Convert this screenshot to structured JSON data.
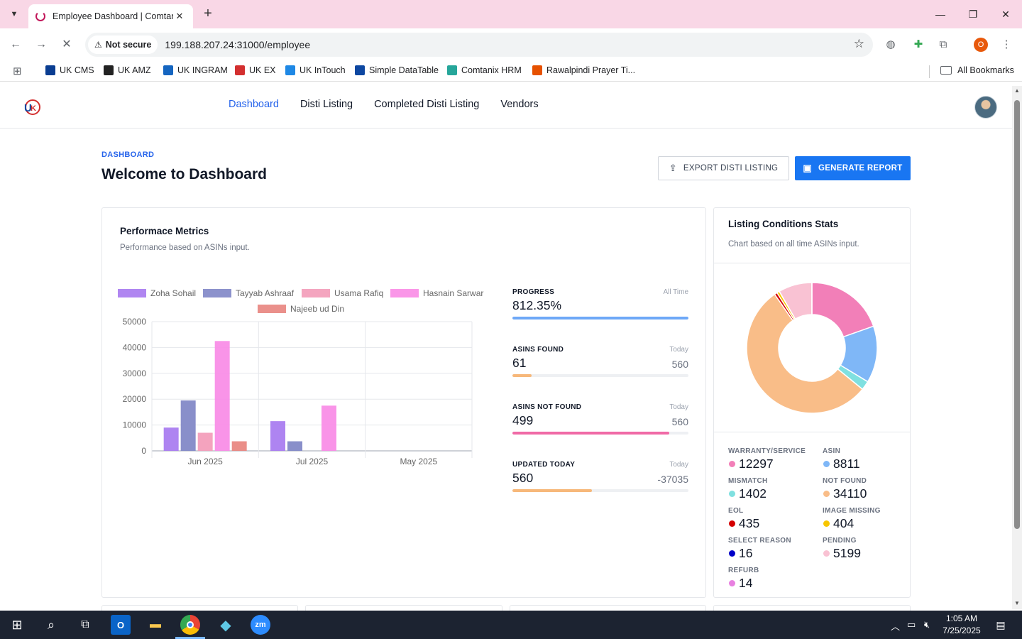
{
  "browser": {
    "tab_title": "Employee Dashboard | Comtan",
    "not_secure_label": "Not secure",
    "url": "199.188.207.24:31000/employee",
    "profile_initial": "O",
    "bookmarks": [
      {
        "label": "UK CMS",
        "color": "#0a3d91"
      },
      {
        "label": "UK AMZ",
        "color": "#222222"
      },
      {
        "label": "UK INGRAM",
        "color": "#1565c0"
      },
      {
        "label": "UK EX",
        "color": "#d32f2f"
      },
      {
        "label": "UK InTouch",
        "color": "#1e88e5"
      },
      {
        "label": "Simple DataTable",
        "color": "#0d47a1"
      },
      {
        "label": "Comtanix HRM",
        "color": "#26a69a"
      },
      {
        "label": "Rawalpindi Prayer Ti...",
        "color": "#e65100"
      }
    ],
    "all_bookmarks_label": "All Bookmarks"
  },
  "nav": {
    "items": [
      "Dashboard",
      "Disti Listing",
      "Completed Disti Listing",
      "Vendors"
    ],
    "active": "Dashboard"
  },
  "page": {
    "eyebrow": "DASHBOARD",
    "title": "Welcome to Dashboard",
    "export_button": "EXPORT DISTI LISTING",
    "generate_button": "GENERATE REPORT"
  },
  "performance": {
    "title": "Performace Metrics",
    "subtitle": "Performance based on ASINs input.",
    "metrics": [
      {
        "label": "PROGRESS",
        "period": "All Time",
        "value": "812.35%",
        "total": "",
        "fill": 1.0,
        "color": "#6ea8f7"
      },
      {
        "label": "ASINS FOUND",
        "period": "Today",
        "value": "61",
        "total": "560",
        "fill": 0.109,
        "color": "#f7b87a"
      },
      {
        "label": "ASINS NOT FOUND",
        "period": "Today",
        "value": "499",
        "total": "560",
        "fill": 0.891,
        "color": "#f06aa6"
      },
      {
        "label": "UPDATED TODAY",
        "period": "Today",
        "value": "560",
        "total": "-37035",
        "fill": 0.45,
        "color": "#f7b87a"
      }
    ]
  },
  "chart_data": {
    "type": "bar",
    "categories": [
      "Jun 2025",
      "Jul 2025",
      "May 2025"
    ],
    "series": [
      {
        "name": "Zoha Sohail",
        "color": "#a779f0",
        "values": [
          9000,
          11500,
          0
        ]
      },
      {
        "name": "Tayyab Ashraaf",
        "color": "#7f86c6",
        "values": [
          19500,
          3700,
          0
        ]
      },
      {
        "name": "Usama Rafiq",
        "color": "#f39bb8",
        "values": [
          7000,
          0,
          0
        ]
      },
      {
        "name": "Hasnain Sarwar",
        "color": "#f98be6",
        "values": [
          42500,
          17500,
          0
        ]
      },
      {
        "name": "Najeeb ud Din",
        "color": "#e8847e",
        "values": [
          3700,
          0,
          0
        ]
      }
    ],
    "yticks": [
      0,
      10000,
      20000,
      30000,
      40000,
      50000
    ],
    "ylim": [
      0,
      50000
    ],
    "grid": true,
    "legend": "top"
  },
  "stats": {
    "title": "Listing Conditions Stats",
    "subtitle": "Chart based on all time ASINs input.",
    "donut": [
      {
        "label": "WARRANTY/SERVICE",
        "value": 12297,
        "color": "#f27fb8"
      },
      {
        "label": "ASIN",
        "value": 8811,
        "color": "#7fb7f7"
      },
      {
        "label": "MISMATCH",
        "value": 1402,
        "color": "#7fe0e0"
      },
      {
        "label": "NOT FOUND",
        "value": 34110,
        "color": "#f9bd88"
      },
      {
        "label": "EOL",
        "value": 435,
        "color": "#d40000"
      },
      {
        "label": "IMAGE MISSING",
        "value": 404,
        "color": "#f7c600"
      },
      {
        "label": "SELECT REASON",
        "value": 16,
        "color": "#0000c8"
      },
      {
        "label": "PENDING",
        "value": 5199,
        "color": "#f9c2d3"
      },
      {
        "label": "REFURB",
        "value": 14,
        "color": "#e880e0"
      }
    ],
    "left_column": [
      {
        "label": "WARRANTY/SERVICE",
        "value": "12297",
        "color": "#f27fb8"
      },
      {
        "label": "MISMATCH",
        "value": "1402",
        "color": "#7fe0e0"
      },
      {
        "label": "EOL",
        "value": "435",
        "color": "#d40000"
      },
      {
        "label": "SELECT REASON",
        "value": "16",
        "color": "#0000c8"
      },
      {
        "label": "REFURB",
        "value": "14",
        "color": "#e880e0"
      }
    ],
    "right_column": [
      {
        "label": "ASIN",
        "value": "8811",
        "color": "#7fb7f7"
      },
      {
        "label": "NOT FOUND",
        "value": "34110",
        "color": "#f9bd88"
      },
      {
        "label": "IMAGE MISSING",
        "value": "404",
        "color": "#f7c600"
      },
      {
        "label": "PENDING",
        "value": "5199",
        "color": "#f9c2d3"
      }
    ]
  },
  "taskbar": {
    "time": "1:05 AM",
    "date": "7/25/2025",
    "notification_count": "1"
  }
}
